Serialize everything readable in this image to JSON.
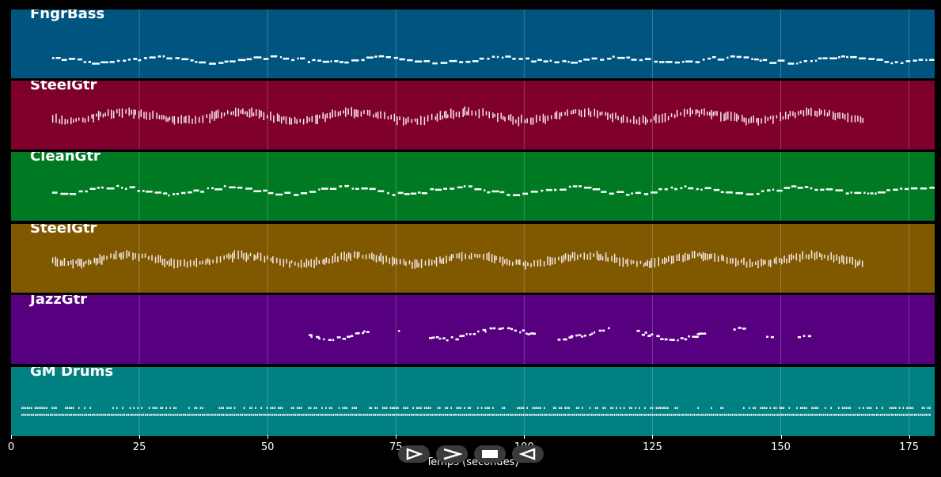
{
  "tracks": [
    {
      "name": "FngrBass",
      "color": "#005580"
    },
    {
      "name": "SteelGtr",
      "color": "#80002d"
    },
    {
      "name": "CleanGtr",
      "color": "#007a22"
    },
    {
      "name": "SteelGtr",
      "color": "#805800"
    },
    {
      "name": "JazzGtr",
      "color": "#560080"
    },
    {
      "name": "GM Drums",
      "color": "#008080"
    }
  ],
  "axis": {
    "xlabel": "Temps (secondes)",
    "ticks": [
      "0",
      "25",
      "50",
      "75",
      "100",
      "125",
      "150",
      "175"
    ],
    "tick_values": [
      0,
      25,
      50,
      75,
      100,
      125,
      150,
      175
    ],
    "xlim": [
      0,
      180
    ],
    "grid": true
  },
  "controls": [
    {
      "name": "play-icon"
    },
    {
      "name": "fast-forward-icon"
    },
    {
      "name": "stop-icon"
    },
    {
      "name": "rewind-icon"
    }
  ]
}
